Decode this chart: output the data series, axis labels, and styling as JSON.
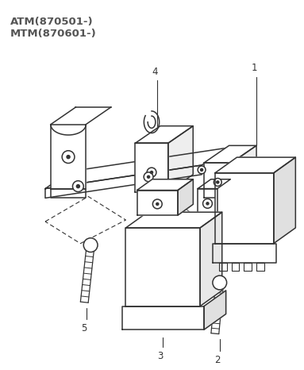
{
  "title_lines": [
    "ATM(870501-)",
    "MTM(870601-)"
  ],
  "title_color": "#555555",
  "title_fontsize": 9.5,
  "background_color": "#ffffff",
  "line_color": "#333333",
  "label_color": "#333333",
  "label_fontsize": 8.5
}
